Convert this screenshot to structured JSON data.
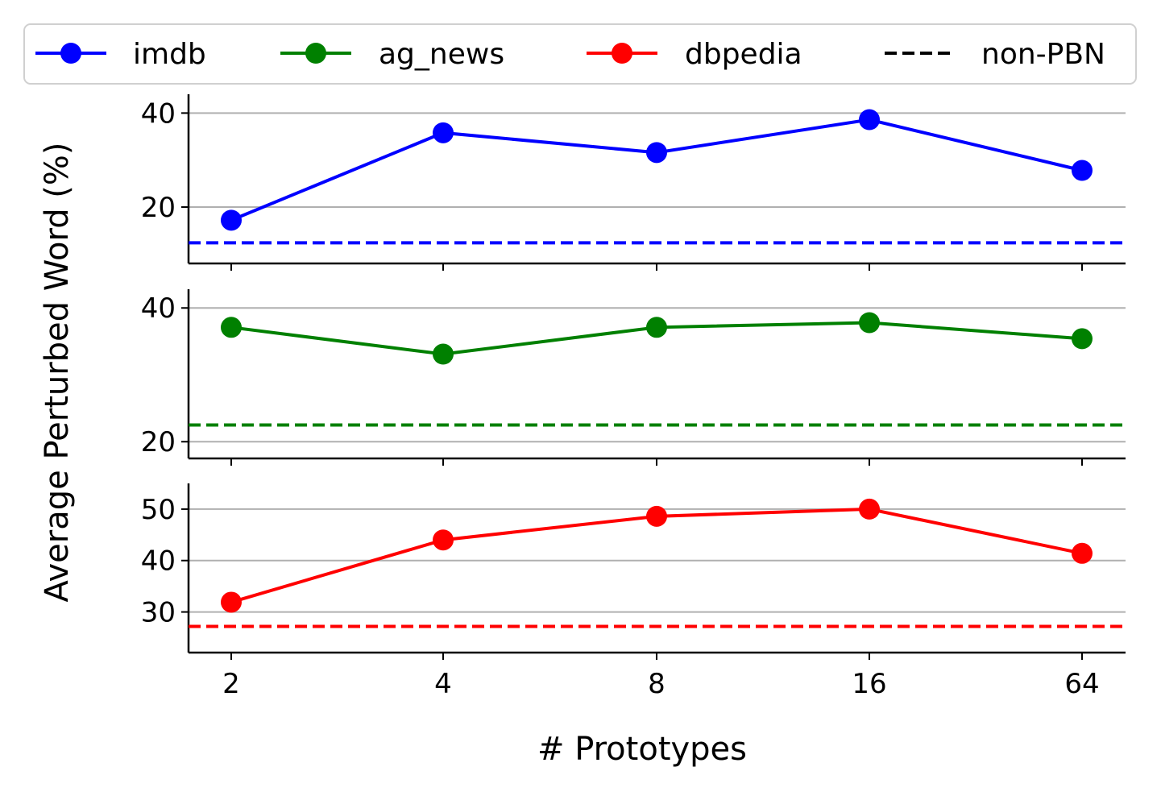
{
  "chart_data": {
    "type": "line",
    "xlabel": "# Prototypes",
    "ylabel": "Average Perturbed Word (%)",
    "categories": [
      "2",
      "4",
      "8",
      "16",
      "64"
    ],
    "legend": {
      "placement": "top",
      "entries": [
        {
          "label": "imdb",
          "color": "#0000ff",
          "style": "solid-marker"
        },
        {
          "label": "ag_news",
          "color": "#008000",
          "style": "solid-marker"
        },
        {
          "label": "dbpedia",
          "color": "#ff0000",
          "style": "solid-marker"
        },
        {
          "label": "non-PBN",
          "color": "#000000",
          "style": "dashed"
        }
      ]
    },
    "grid": "horizontal",
    "panels": [
      {
        "series": "imdb",
        "color": "#0000ff",
        "values": [
          17.2,
          35.8,
          31.6,
          38.6,
          27.8
        ],
        "baseline": 12.4,
        "ylim": [
          8.0,
          44.0
        ],
        "yticks": [
          20,
          40
        ]
      },
      {
        "series": "ag_news",
        "color": "#008000",
        "values": [
          37.1,
          33.1,
          37.1,
          37.8,
          35.4
        ],
        "baseline": 22.5,
        "ylim": [
          17.5,
          42.8
        ],
        "yticks": [
          20,
          40
        ]
      },
      {
        "series": "dbpedia",
        "color": "#ff0000",
        "values": [
          31.9,
          44.0,
          48.6,
          50.0,
          41.4
        ],
        "baseline": 27.2,
        "ylim": [
          22.1,
          55.0
        ],
        "yticks": [
          30,
          40,
          50
        ]
      }
    ]
  }
}
